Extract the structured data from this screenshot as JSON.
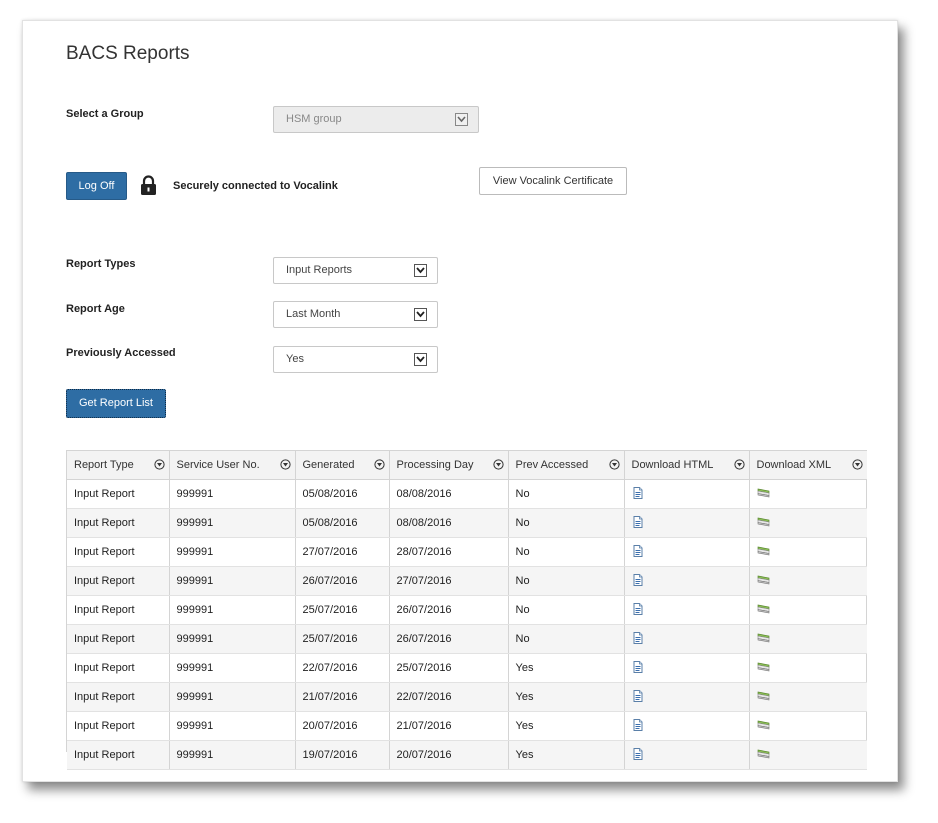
{
  "page": {
    "title": "BACS Reports"
  },
  "group": {
    "label": "Select a Group",
    "selected": "HSM group"
  },
  "connection": {
    "log_off_label": "Log Off",
    "status_text": "Securely connected to Vocalink",
    "certificate_button_label": "View Vocalink Certificate"
  },
  "filters": {
    "report_types_label": "Report Types",
    "report_types_value": "Input Reports",
    "report_age_label": "Report Age",
    "report_age_value": "Last Month",
    "previously_accessed_label": "Previously Accessed",
    "previously_accessed_value": "Yes",
    "get_report_list_label": "Get Report List"
  },
  "table": {
    "columns": [
      "Report Type",
      "Service User No.",
      "Generated",
      "Processing Day",
      "Prev Accessed",
      "Download HTML",
      "Download XML"
    ],
    "rows": [
      [
        "Input Report",
        "999991",
        "05/08/2016",
        "08/08/2016",
        "No"
      ],
      [
        "Input Report",
        "999991",
        "05/08/2016",
        "08/08/2016",
        "No"
      ],
      [
        "Input Report",
        "999991",
        "27/07/2016",
        "28/07/2016",
        "No"
      ],
      [
        "Input Report",
        "999991",
        "26/07/2016",
        "27/07/2016",
        "No"
      ],
      [
        "Input Report",
        "999991",
        "25/07/2016",
        "26/07/2016",
        "No"
      ],
      [
        "Input Report",
        "999991",
        "25/07/2016",
        "26/07/2016",
        "No"
      ],
      [
        "Input Report",
        "999991",
        "22/07/2016",
        "25/07/2016",
        "Yes"
      ],
      [
        "Input Report",
        "999991",
        "21/07/2016",
        "22/07/2016",
        "Yes"
      ],
      [
        "Input Report",
        "999991",
        "20/07/2016",
        "21/07/2016",
        "Yes"
      ],
      [
        "Input Report",
        "999991",
        "19/07/2016",
        "20/07/2016",
        "Yes"
      ]
    ],
    "html_icon": "html-document-icon",
    "xml_icon": "xml-document-icon"
  },
  "colors": {
    "primary_button": "#2e6da4",
    "border": "#d4d4d4"
  }
}
